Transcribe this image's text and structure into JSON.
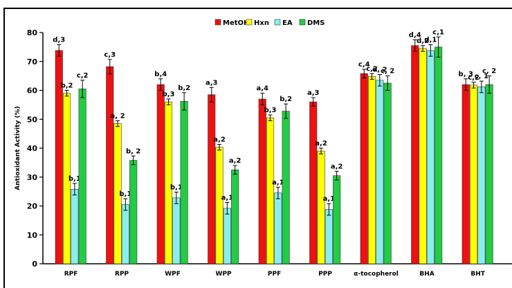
{
  "chart_data": {
    "type": "bar",
    "title": "",
    "xlabel": "",
    "ylabel": "Antioxidant Activity (%)",
    "ylim": [
      0,
      80
    ],
    "yticks": [
      0,
      10,
      20,
      30,
      40,
      50,
      60,
      70,
      80
    ],
    "grid": false,
    "legend_position": "top",
    "categories": [
      "RPF",
      "RPP",
      "WPF",
      "WPP",
      "PPF",
      "PPP",
      "α-tocopherol",
      "BHA",
      "BHT"
    ],
    "series": [
      {
        "name": "MetOH",
        "color": "#ee1111",
        "values": [
          73.8,
          68.2,
          62.0,
          58.5,
          57.0,
          56.0,
          65.8,
          75.5,
          62.0
        ],
        "errors": [
          2.0,
          2.5,
          2.0,
          2.5,
          2.0,
          1.5,
          1.5,
          2.0,
          2.0
        ],
        "labels": [
          "d,3",
          "c,3",
          "b,4",
          "a,3",
          "a,4",
          "a,3",
          "c,4",
          "d,4",
          "b, 3"
        ]
      },
      {
        "name": "Hxn",
        "color": "#ffff00",
        "values": [
          59.0,
          48.5,
          56.0,
          40.3,
          50.5,
          39.0,
          64.8,
          74.5,
          61.8
        ],
        "errors": [
          1.0,
          1.0,
          1.0,
          1.0,
          1.0,
          1.0,
          1.0,
          1.0,
          1.0
        ],
        "labels": [
          "b,2",
          "a, 2",
          "b,3",
          "a,2",
          "b,3",
          "a,2",
          "c,2",
          "d,2",
          "c,2"
        ]
      },
      {
        "name": "EA",
        "color": "#88eeee",
        "values": [
          25.8,
          20.5,
          22.8,
          19.2,
          24.5,
          18.8,
          63.5,
          73.8,
          61.2
        ],
        "errors": [
          2.0,
          2.0,
          2.0,
          2.0,
          2.0,
          2.0,
          2.0,
          2.0,
          2.0
        ],
        "labels": [
          "b,1",
          "b,1",
          "b,1",
          "a,1",
          "a,1",
          "a,1",
          "d, 2",
          "d,1",
          "c, 1"
        ]
      },
      {
        "name": "DMS",
        "color": "#22cc44",
        "values": [
          60.5,
          35.8,
          56.2,
          32.5,
          52.8,
          30.5,
          62.5,
          75.0,
          62.0
        ],
        "errors": [
          3.0,
          1.5,
          3.0,
          1.5,
          2.5,
          1.5,
          2.5,
          3.5,
          3.0
        ],
        "labels": [
          "c,2",
          "b, 2",
          "b,2",
          "a,2",
          "b,2",
          "a,2",
          "c, 2",
          "c,1",
          "c, 2"
        ]
      }
    ]
  }
}
